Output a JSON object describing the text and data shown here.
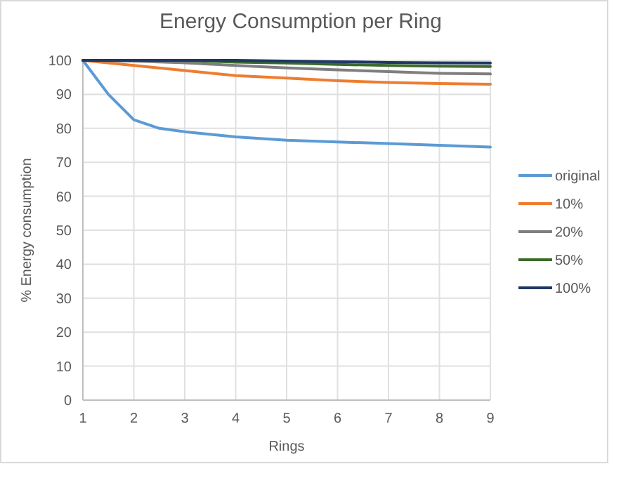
{
  "chart_data": {
    "type": "line",
    "title": "Energy Consumption per Ring",
    "xlabel": "Rings",
    "ylabel": "% Energy consumption",
    "xlim": [
      1,
      9
    ],
    "xticks": [
      1,
      2,
      3,
      4,
      5,
      6,
      7,
      8,
      9
    ],
    "ylim": [
      0,
      100
    ],
    "yticks": [
      0,
      10,
      20,
      30,
      40,
      50,
      60,
      70,
      80,
      90,
      100
    ],
    "grid": true,
    "legend": "right",
    "marker": "none",
    "line_style": "solid",
    "series": [
      {
        "name": "original",
        "color": "#5b9bd5",
        "x": [
          1,
          1.5,
          2,
          2.5,
          3,
          4,
          5,
          6,
          7,
          8,
          9
        ],
        "values": [
          100,
          90,
          82.5,
          80,
          79,
          77.5,
          76.5,
          76,
          75.5,
          75,
          74.5
        ]
      },
      {
        "name": "10%",
        "color": "#ed7d31",
        "x": [
          1,
          2,
          3,
          4,
          5,
          6,
          7,
          8,
          9
        ],
        "values": [
          100,
          98.5,
          97,
          95.5,
          94.8,
          94,
          93.5,
          93.2,
          93
        ]
      },
      {
        "name": "20%",
        "color": "#7f7f7f",
        "x": [
          1,
          2,
          3,
          4,
          5,
          6,
          7,
          8,
          9
        ],
        "values": [
          100,
          99.8,
          99.3,
          98.5,
          97.8,
          97.2,
          96.7,
          96.2,
          96
        ]
      },
      {
        "name": "50%",
        "color": "#3a6b2a",
        "x": [
          1,
          2,
          3,
          4,
          5,
          6,
          7,
          8,
          9
        ],
        "values": [
          100,
          100,
          100,
          99.5,
          99.2,
          98.8,
          98.5,
          98.3,
          98.2
        ]
      },
      {
        "name": "100%",
        "color": "#1f3864",
        "x": [
          1,
          2,
          3,
          4,
          5,
          6,
          7,
          8,
          9
        ],
        "values": [
          100,
          100,
          100,
          100,
          99.8,
          99.6,
          99.4,
          99.3,
          99.2
        ]
      }
    ]
  }
}
